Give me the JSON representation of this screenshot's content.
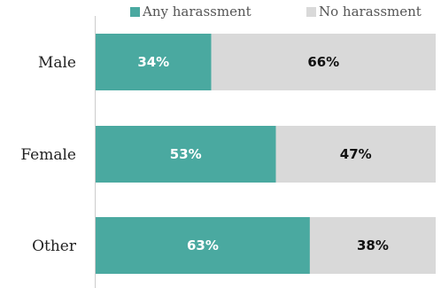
{
  "chart_data": {
    "type": "bar",
    "orientation": "horizontal",
    "stacked": true,
    "categories": [
      "Male",
      "Female",
      "Other"
    ],
    "series": [
      {
        "name": "Any harassment",
        "values": [
          34,
          53,
          63
        ],
        "labels": [
          "34%",
          "53%",
          "63%"
        ],
        "color": "#4aa9a0",
        "label_color": "#ffffff"
      },
      {
        "name": "No harassment",
        "values": [
          66,
          47,
          38
        ],
        "labels": [
          "66%",
          "47%",
          "38%"
        ],
        "color": "#d9d9d9",
        "label_color": "#111111"
      }
    ],
    "xlim": [
      0,
      100
    ],
    "grid": false,
    "legend_position": "top-right"
  }
}
